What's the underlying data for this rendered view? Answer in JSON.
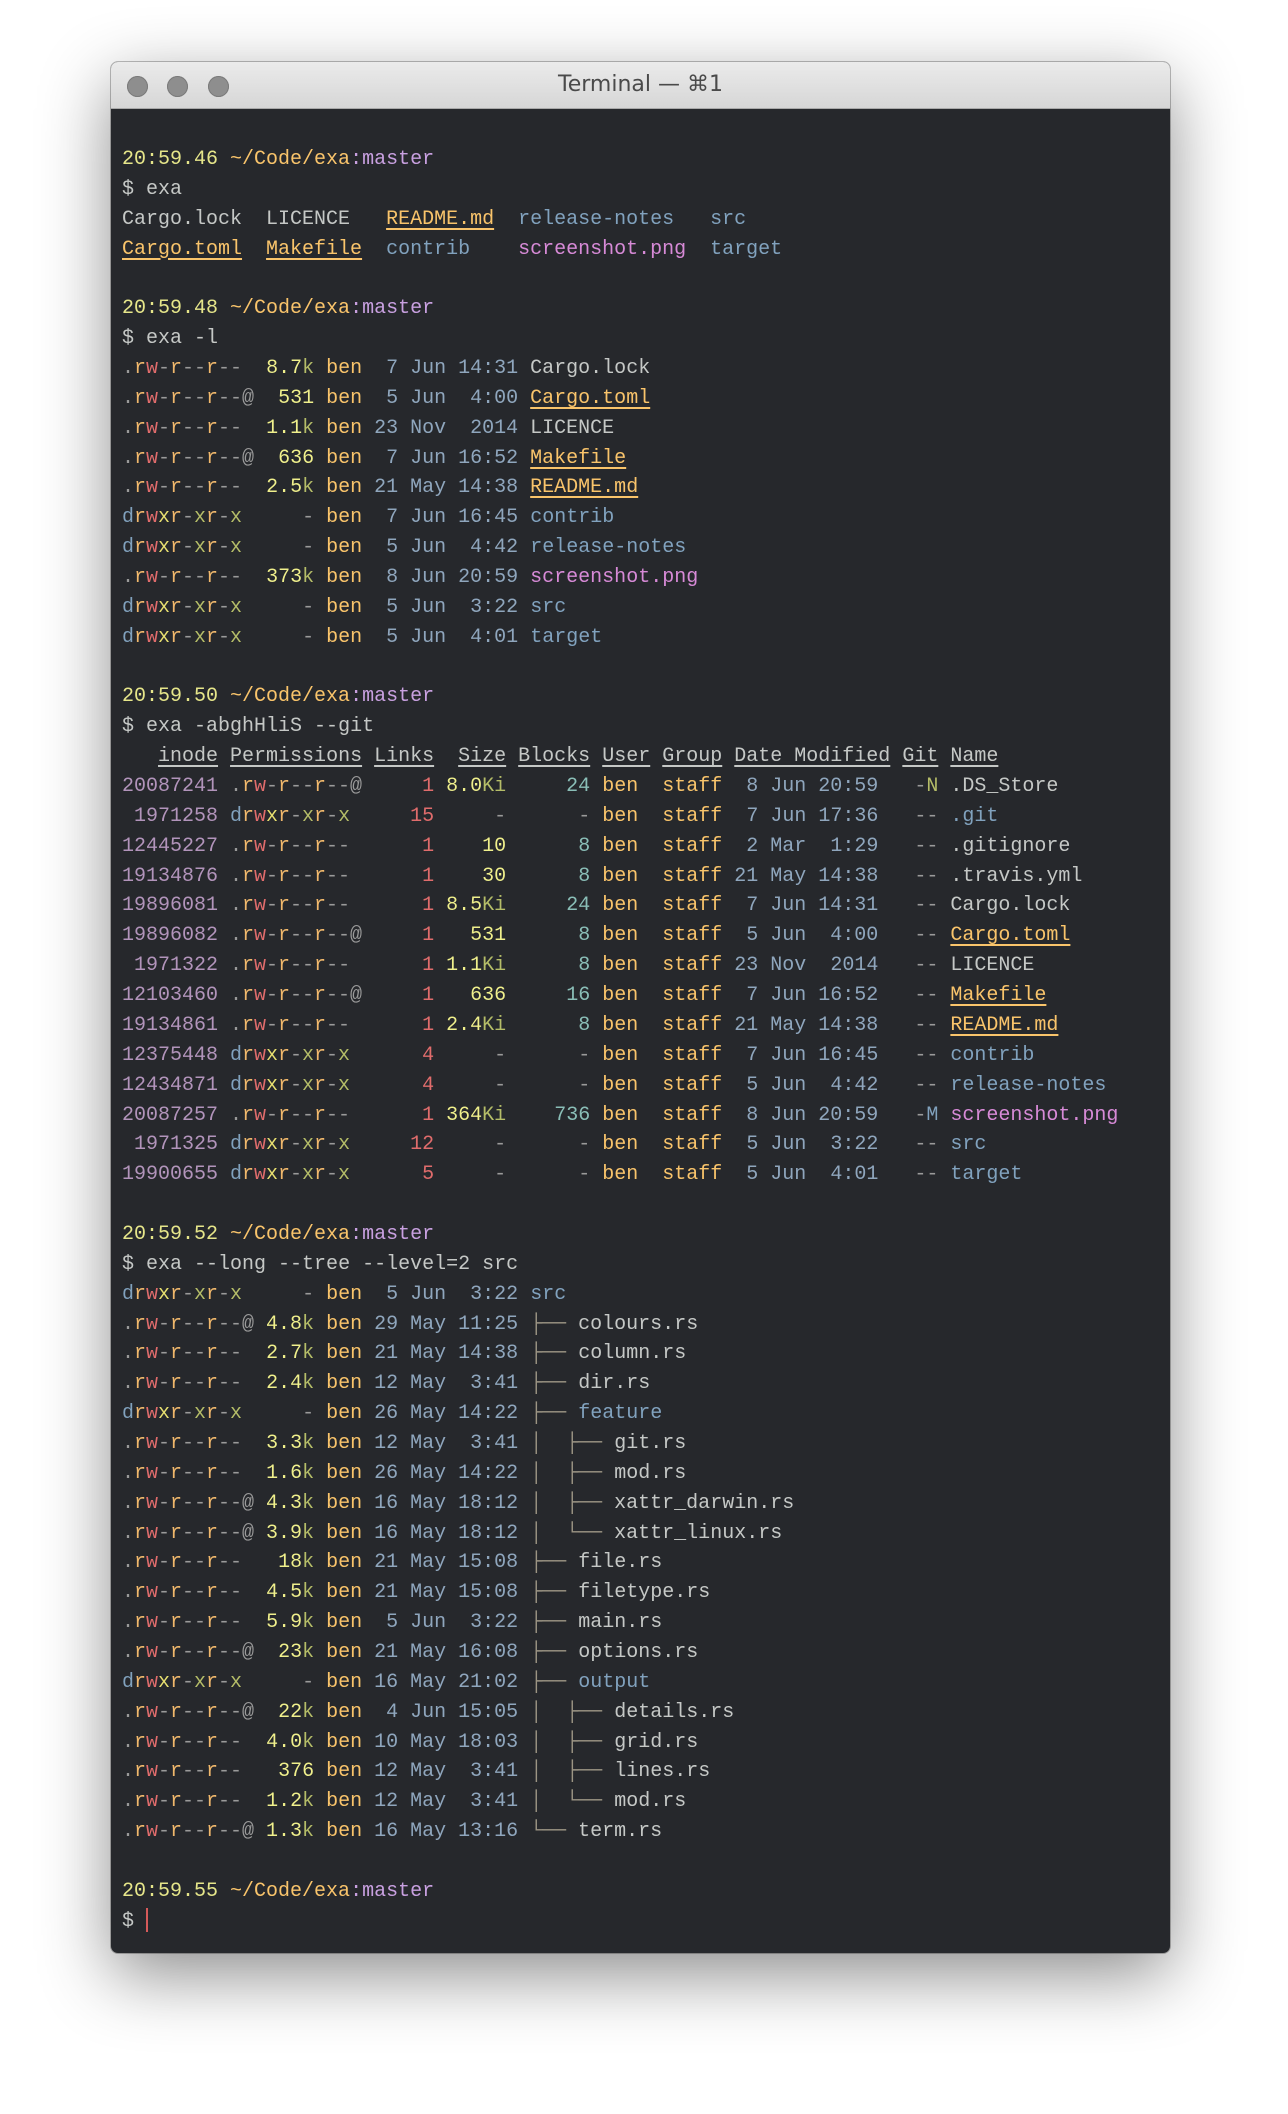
{
  "window": {
    "title": "Terminal — ⌘1"
  },
  "colors": {
    "background": "#26282c",
    "text": "#c5c8c6",
    "time": "#e6e68a",
    "path": "#f9c46b",
    "branch": "#c8a0e0",
    "dir": "#81a2be",
    "build": "#f9c46b",
    "image": "#d78ad7",
    "perm_read": "#f0b86c",
    "perm_write": "#e06c6c",
    "perm_exec_user": "#e8e070",
    "perm_exec": "#b5bd68",
    "perm_dash": "#9a9a9a",
    "size_number": "#f0f08c",
    "size_unit": "#b5bd68",
    "user": "#f9c46b",
    "group": "#f9c46b",
    "date": "#8fa6bd",
    "inode": "#b294bb",
    "links": "#e06c6c",
    "blocks": "#8abeb7",
    "git_new": "#b5bd68",
    "git_modified": "#81a2be",
    "tree": "#9c9584",
    "cursor": "#d65a5a"
  },
  "sessions": [
    {
      "prompt": {
        "time": "20:59.46",
        "path": "~/Code/exa",
        "branch": "master"
      },
      "command": "exa",
      "grid": [
        [
          {
            "name": "Cargo.lock",
            "type": "file"
          },
          {
            "name": "LICENCE",
            "type": "file"
          },
          {
            "name": "README.md",
            "type": "build"
          },
          {
            "name": "release-notes",
            "type": "dir"
          },
          {
            "name": "src",
            "type": "dir"
          }
        ],
        [
          {
            "name": "Cargo.toml",
            "type": "build"
          },
          {
            "name": "Makefile",
            "type": "build"
          },
          {
            "name": "contrib",
            "type": "dir"
          },
          {
            "name": "screenshot.png",
            "type": "image"
          },
          {
            "name": "target",
            "type": "dir"
          }
        ]
      ]
    },
    {
      "prompt": {
        "time": "20:59.48",
        "path": "~/Code/exa",
        "branch": "master"
      },
      "command": "exa -l",
      "long": [
        {
          "permissions": ".rw-r--r--",
          "size": "8.7k",
          "user": "ben",
          "date": "7 Jun 14:31",
          "name": "Cargo.lock",
          "type": "file"
        },
        {
          "permissions": ".rw-r--r--@",
          "size": "531",
          "user": "ben",
          "date": "5 Jun 4:00",
          "name": "Cargo.toml",
          "type": "build"
        },
        {
          "permissions": ".rw-r--r--",
          "size": "1.1k",
          "user": "ben",
          "date": "23 Nov 2014",
          "name": "LICENCE",
          "type": "file"
        },
        {
          "permissions": ".rw-r--r--@",
          "size": "636",
          "user": "ben",
          "date": "7 Jun 16:52",
          "name": "Makefile",
          "type": "build"
        },
        {
          "permissions": ".rw-r--r--",
          "size": "2.5k",
          "user": "ben",
          "date": "21 May 14:38",
          "name": "README.md",
          "type": "build"
        },
        {
          "permissions": "drwxr-xr-x",
          "size": "-",
          "user": "ben",
          "date": "7 Jun 16:45",
          "name": "contrib",
          "type": "dir"
        },
        {
          "permissions": "drwxr-xr-x",
          "size": "-",
          "user": "ben",
          "date": "5 Jun 4:42",
          "name": "release-notes",
          "type": "dir"
        },
        {
          "permissions": ".rw-r--r--",
          "size": "373k",
          "user": "ben",
          "date": "8 Jun 20:59",
          "name": "screenshot.png",
          "type": "image"
        },
        {
          "permissions": "drwxr-xr-x",
          "size": "-",
          "user": "ben",
          "date": "5 Jun 3:22",
          "name": "src",
          "type": "dir"
        },
        {
          "permissions": "drwxr-xr-x",
          "size": "-",
          "user": "ben",
          "date": "5 Jun 4:01",
          "name": "target",
          "type": "dir"
        }
      ]
    },
    {
      "prompt": {
        "time": "20:59.50",
        "path": "~/Code/exa",
        "branch": "master"
      },
      "command": "exa -abghHliS --git",
      "headers": [
        "inode",
        "Permissions",
        "Links",
        "Size",
        "Blocks",
        "User",
        "Group",
        "Date Modified",
        "Git",
        "Name"
      ],
      "detailed": [
        {
          "inode": "20087241",
          "permissions": ".rw-r--r--@",
          "links": "1",
          "size": "8.0Ki",
          "blocks": "24",
          "user": "ben",
          "group": "staff",
          "date": "8 Jun 20:59",
          "git": "-N",
          "name": ".DS_Store",
          "type": "file"
        },
        {
          "inode": "1971258",
          "permissions": "drwxr-xr-x",
          "links": "15",
          "size": "-",
          "blocks": "-",
          "user": "ben",
          "group": "staff",
          "date": "7 Jun 17:36",
          "git": "--",
          "name": ".git",
          "type": "dir"
        },
        {
          "inode": "12445227",
          "permissions": ".rw-r--r--",
          "links": "1",
          "size": "10",
          "blocks": "8",
          "user": "ben",
          "group": "staff",
          "date": "2 Mar 1:29",
          "git": "--",
          "name": ".gitignore",
          "type": "file"
        },
        {
          "inode": "19134876",
          "permissions": ".rw-r--r--",
          "links": "1",
          "size": "30",
          "blocks": "8",
          "user": "ben",
          "group": "staff",
          "date": "21 May 14:38",
          "git": "--",
          "name": ".travis.yml",
          "type": "file"
        },
        {
          "inode": "19896081",
          "permissions": ".rw-r--r--",
          "links": "1",
          "size": "8.5Ki",
          "blocks": "24",
          "user": "ben",
          "group": "staff",
          "date": "7 Jun 14:31",
          "git": "--",
          "name": "Cargo.lock",
          "type": "file"
        },
        {
          "inode": "19896082",
          "permissions": ".rw-r--r--@",
          "links": "1",
          "size": "531",
          "blocks": "8",
          "user": "ben",
          "group": "staff",
          "date": "5 Jun 4:00",
          "git": "--",
          "name": "Cargo.toml",
          "type": "build"
        },
        {
          "inode": "1971322",
          "permissions": ".rw-r--r--",
          "links": "1",
          "size": "1.1Ki",
          "blocks": "8",
          "user": "ben",
          "group": "staff",
          "date": "23 Nov 2014",
          "git": "--",
          "name": "LICENCE",
          "type": "file"
        },
        {
          "inode": "12103460",
          "permissions": ".rw-r--r--@",
          "links": "1",
          "size": "636",
          "blocks": "16",
          "user": "ben",
          "group": "staff",
          "date": "7 Jun 16:52",
          "git": "--",
          "name": "Makefile",
          "type": "build"
        },
        {
          "inode": "19134861",
          "permissions": ".rw-r--r--",
          "links": "1",
          "size": "2.4Ki",
          "blocks": "8",
          "user": "ben",
          "group": "staff",
          "date": "21 May 14:38",
          "git": "--",
          "name": "README.md",
          "type": "build"
        },
        {
          "inode": "12375448",
          "permissions": "drwxr-xr-x",
          "links": "4",
          "size": "-",
          "blocks": "-",
          "user": "ben",
          "group": "staff",
          "date": "7 Jun 16:45",
          "git": "--",
          "name": "contrib",
          "type": "dir"
        },
        {
          "inode": "12434871",
          "permissions": "drwxr-xr-x",
          "links": "4",
          "size": "-",
          "blocks": "-",
          "user": "ben",
          "group": "staff",
          "date": "5 Jun 4:42",
          "git": "--",
          "name": "release-notes",
          "type": "dir"
        },
        {
          "inode": "20087257",
          "permissions": ".rw-r--r--",
          "links": "1",
          "size": "364Ki",
          "blocks": "736",
          "user": "ben",
          "group": "staff",
          "date": "8 Jun 20:59",
          "git": "-M",
          "name": "screenshot.png",
          "type": "image"
        },
        {
          "inode": "1971325",
          "permissions": "drwxr-xr-x",
          "links": "12",
          "size": "-",
          "blocks": "-",
          "user": "ben",
          "group": "staff",
          "date": "5 Jun 3:22",
          "git": "--",
          "name": "src",
          "type": "dir"
        },
        {
          "inode": "19900655",
          "permissions": "drwxr-xr-x",
          "links": "5",
          "size": "-",
          "blocks": "-",
          "user": "ben",
          "group": "staff",
          "date": "5 Jun 4:01",
          "git": "--",
          "name": "target",
          "type": "dir"
        }
      ]
    },
    {
      "prompt": {
        "time": "20:59.52",
        "path": "~/Code/exa",
        "branch": "master"
      },
      "command": "exa --long --tree --level=2 src",
      "tree": [
        {
          "permissions": "drwxr-xr-x",
          "size": "-",
          "user": "ben",
          "date": "5 Jun 3:22",
          "branch": "",
          "name": "src",
          "type": "dir"
        },
        {
          "permissions": ".rw-r--r--@",
          "size": "4.8k",
          "user": "ben",
          "date": "29 May 11:25",
          "branch": "├── ",
          "name": "colours.rs",
          "type": "file"
        },
        {
          "permissions": ".rw-r--r--",
          "size": "2.7k",
          "user": "ben",
          "date": "21 May 14:38",
          "branch": "├── ",
          "name": "column.rs",
          "type": "file"
        },
        {
          "permissions": ".rw-r--r--",
          "size": "2.4k",
          "user": "ben",
          "date": "12 May 3:41",
          "branch": "├── ",
          "name": "dir.rs",
          "type": "file"
        },
        {
          "permissions": "drwxr-xr-x",
          "size": "-",
          "user": "ben",
          "date": "26 May 14:22",
          "branch": "├── ",
          "name": "feature",
          "type": "dir"
        },
        {
          "permissions": ".rw-r--r--",
          "size": "3.3k",
          "user": "ben",
          "date": "12 May 3:41",
          "branch": "│  ├── ",
          "name": "git.rs",
          "type": "file"
        },
        {
          "permissions": ".rw-r--r--",
          "size": "1.6k",
          "user": "ben",
          "date": "26 May 14:22",
          "branch": "│  ├── ",
          "name": "mod.rs",
          "type": "file"
        },
        {
          "permissions": ".rw-r--r--@",
          "size": "4.3k",
          "user": "ben",
          "date": "16 May 18:12",
          "branch": "│  ├── ",
          "name": "xattr_darwin.rs",
          "type": "file"
        },
        {
          "permissions": ".rw-r--r--@",
          "size": "3.9k",
          "user": "ben",
          "date": "16 May 18:12",
          "branch": "│  └── ",
          "name": "xattr_linux.rs",
          "type": "file"
        },
        {
          "permissions": ".rw-r--r--",
          "size": "18k",
          "user": "ben",
          "date": "21 May 15:08",
          "branch": "├── ",
          "name": "file.rs",
          "type": "file"
        },
        {
          "permissions": ".rw-r--r--",
          "size": "4.5k",
          "user": "ben",
          "date": "21 May 15:08",
          "branch": "├── ",
          "name": "filetype.rs",
          "type": "file"
        },
        {
          "permissions": ".rw-r--r--",
          "size": "5.9k",
          "user": "ben",
          "date": "5 Jun 3:22",
          "branch": "├── ",
          "name": "main.rs",
          "type": "file"
        },
        {
          "permissions": ".rw-r--r--@",
          "size": "23k",
          "user": "ben",
          "date": "21 May 16:08",
          "branch": "├── ",
          "name": "options.rs",
          "type": "file"
        },
        {
          "permissions": "drwxr-xr-x",
          "size": "-",
          "user": "ben",
          "date": "16 May 21:02",
          "branch": "├── ",
          "name": "output",
          "type": "dir"
        },
        {
          "permissions": ".rw-r--r--@",
          "size": "22k",
          "user": "ben",
          "date": "4 Jun 15:05",
          "branch": "│  ├── ",
          "name": "details.rs",
          "type": "file"
        },
        {
          "permissions": ".rw-r--r--",
          "size": "4.0k",
          "user": "ben",
          "date": "10 May 18:03",
          "branch": "│  ├── ",
          "name": "grid.rs",
          "type": "file"
        },
        {
          "permissions": ".rw-r--r--",
          "size": "376",
          "user": "ben",
          "date": "12 May 3:41",
          "branch": "│  ├── ",
          "name": "lines.rs",
          "type": "file"
        },
        {
          "permissions": ".rw-r--r--",
          "size": "1.2k",
          "user": "ben",
          "date": "12 May 3:41",
          "branch": "│  └── ",
          "name": "mod.rs",
          "type": "file"
        },
        {
          "permissions": ".rw-r--r--@",
          "size": "1.3k",
          "user": "ben",
          "date": "16 May 13:16",
          "branch": "└── ",
          "name": "term.rs",
          "type": "file"
        }
      ]
    },
    {
      "prompt": {
        "time": "20:59.55",
        "path": "~/Code/exa",
        "branch": "master"
      },
      "command": ""
    }
  ],
  "prompt_symbol": "$"
}
